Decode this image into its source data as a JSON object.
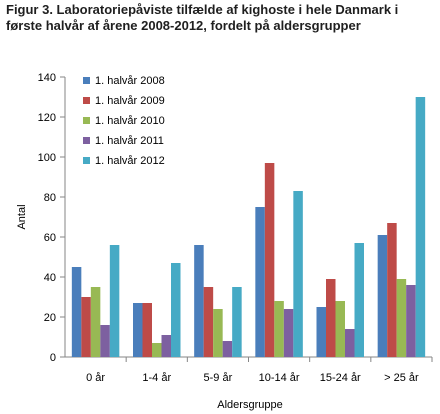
{
  "figure": {
    "title": "Figur 3. Laboratoriepåviste tilfælde af kighoste i hele Danmark i første halvår af årene 2008-2012, fordelt på aldersgrupper"
  },
  "chart_data": {
    "type": "bar",
    "title": "Figur 3. Laboratoriepåviste tilfælde af kighoste i hele Danmark i første halvår af årene 2008-2012, fordelt på aldersgrupper",
    "xlabel": "Aldersgruppe",
    "ylabel": "Antal",
    "ylim": [
      0,
      140
    ],
    "yticks": [
      0,
      20,
      40,
      60,
      80,
      100,
      120,
      140
    ],
    "grid": false,
    "legend_position": "top-left",
    "categories": [
      "0 år",
      "1-4 år",
      "5-9 år",
      "10-14 år",
      "15-24 år",
      "> 25 år"
    ],
    "series": [
      {
        "name": "1. halvår 2008",
        "color": "#4a7ebb",
        "values": [
          45,
          27,
          56,
          75,
          25,
          61
        ]
      },
      {
        "name": "1. halvår 2009",
        "color": "#be4b48",
        "values": [
          30,
          27,
          35,
          97,
          39,
          67
        ]
      },
      {
        "name": "1. halvår 2010",
        "color": "#98b954",
        "values": [
          35,
          7,
          24,
          28,
          28,
          39
        ]
      },
      {
        "name": "1. halvår 2011",
        "color": "#7d60a0",
        "values": [
          16,
          11,
          8,
          24,
          14,
          36
        ]
      },
      {
        "name": "1. halvår 2012",
        "color": "#46aac5",
        "values": [
          56,
          47,
          35,
          83,
          57,
          130
        ]
      }
    ]
  }
}
